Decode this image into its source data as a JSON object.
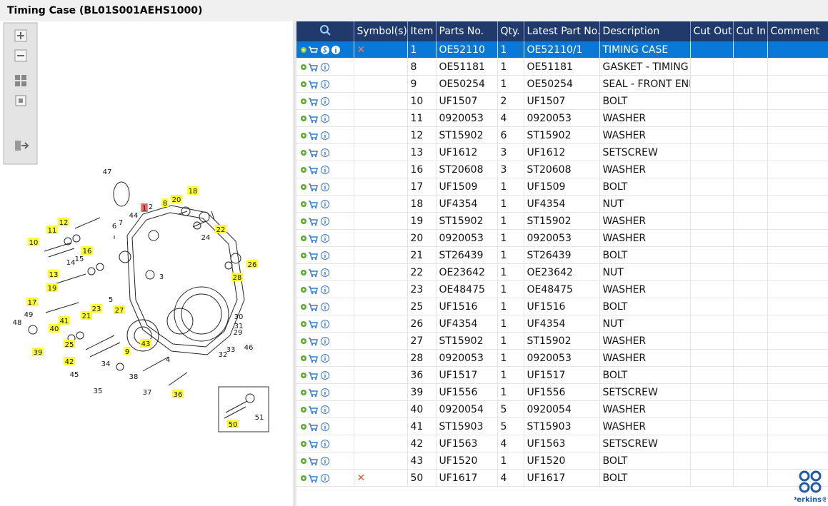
{
  "header": {
    "title": "Timing Case (BL01S001AEHS1000)"
  },
  "table": {
    "columns": [
      "Symbol(s)",
      "Item",
      "Parts No.",
      "Qty.",
      "Latest Part No.",
      "Description",
      "Cut Out",
      "Cut In",
      "Comment"
    ],
    "selected_row": 0,
    "rows": [
      {
        "symbol": "✕",
        "item": 1,
        "parts_no": "OE52110",
        "qty": 1,
        "latest": "OE52110/1",
        "description": "TIMING CASE"
      },
      {
        "item": 8,
        "parts_no": "OE51181",
        "qty": 1,
        "latest": "OE51181",
        "description": "GASKET - TIMING C"
      },
      {
        "item": 9,
        "parts_no": "OE50254",
        "qty": 1,
        "latest": "OE50254",
        "description": "SEAL - FRONT END"
      },
      {
        "item": 10,
        "parts_no": "UF1507",
        "qty": 2,
        "latest": "UF1507",
        "description": "BOLT"
      },
      {
        "item": 11,
        "parts_no": "0920053",
        "qty": 4,
        "latest": "0920053",
        "description": "WASHER"
      },
      {
        "item": 12,
        "parts_no": "ST15902",
        "qty": 6,
        "latest": "ST15902",
        "description": "WASHER"
      },
      {
        "item": 13,
        "parts_no": "UF1612",
        "qty": 3,
        "latest": "UF1612",
        "description": "SETSCREW"
      },
      {
        "item": 16,
        "parts_no": "ST20608",
        "qty": 3,
        "latest": "ST20608",
        "description": "WASHER"
      },
      {
        "item": 17,
        "parts_no": "UF1509",
        "qty": 1,
        "latest": "UF1509",
        "description": "BOLT"
      },
      {
        "item": 18,
        "parts_no": "UF4354",
        "qty": 1,
        "latest": "UF4354",
        "description": "NUT"
      },
      {
        "item": 19,
        "parts_no": "ST15902",
        "qty": 1,
        "latest": "ST15902",
        "description": "WASHER"
      },
      {
        "item": 20,
        "parts_no": "0920053",
        "qty": 1,
        "latest": "0920053",
        "description": "WASHER"
      },
      {
        "item": 21,
        "parts_no": "ST26439",
        "qty": 1,
        "latest": "ST26439",
        "description": "BOLT"
      },
      {
        "item": 22,
        "parts_no": "OE23642",
        "qty": 1,
        "latest": "OE23642",
        "description": "NUT"
      },
      {
        "item": 23,
        "parts_no": "OE48475",
        "qty": 1,
        "latest": "OE48475",
        "description": "WASHER"
      },
      {
        "item": 25,
        "parts_no": "UF1516",
        "qty": 1,
        "latest": "UF1516",
        "description": "BOLT"
      },
      {
        "item": 26,
        "parts_no": "UF4354",
        "qty": 1,
        "latest": "UF4354",
        "description": "NUT"
      },
      {
        "item": 27,
        "parts_no": "ST15902",
        "qty": 1,
        "latest": "ST15902",
        "description": "WASHER"
      },
      {
        "item": 28,
        "parts_no": "0920053",
        "qty": 1,
        "latest": "0920053",
        "description": "WASHER"
      },
      {
        "item": 36,
        "parts_no": "UF1517",
        "qty": 1,
        "latest": "UF1517",
        "description": "BOLT"
      },
      {
        "item": 39,
        "parts_no": "UF1556",
        "qty": 1,
        "latest": "UF1556",
        "description": "SETSCREW"
      },
      {
        "item": 40,
        "parts_no": "0920054",
        "qty": 5,
        "latest": "0920054",
        "description": "WASHER"
      },
      {
        "item": 41,
        "parts_no": "ST15903",
        "qty": 5,
        "latest": "ST15903",
        "description": "WASHER"
      },
      {
        "item": 42,
        "parts_no": "UF1563",
        "qty": 4,
        "latest": "UF1563",
        "description": "SETSCREW"
      },
      {
        "item": 43,
        "parts_no": "UF1520",
        "qty": 1,
        "latest": "UF1520",
        "description": "BOLT"
      },
      {
        "symbol": "✕",
        "item": 50,
        "parts_no": "UF1617",
        "qty": 4,
        "latest": "UF1617",
        "description": "BOLT"
      }
    ]
  },
  "diagram": {
    "callouts": [
      {
        "label": "47",
        "state": "plain"
      },
      {
        "label": "2",
        "state": "plain"
      },
      {
        "label": "1",
        "state": "selected"
      },
      {
        "label": "44",
        "state": "plain"
      },
      {
        "label": "8",
        "state": "highlighted"
      },
      {
        "label": "20",
        "state": "highlighted"
      },
      {
        "label": "18",
        "state": "highlighted"
      },
      {
        "label": "22",
        "state": "highlighted"
      },
      {
        "label": "24",
        "state": "plain"
      },
      {
        "label": "12",
        "state": "highlighted"
      },
      {
        "label": "11",
        "state": "highlighted"
      },
      {
        "label": "6",
        "state": "plain"
      },
      {
        "label": "7",
        "state": "plain"
      },
      {
        "label": "10",
        "state": "highlighted"
      },
      {
        "label": "16",
        "state": "highlighted"
      },
      {
        "label": "15",
        "state": "plain"
      },
      {
        "label": "14",
        "state": "plain"
      },
      {
        "label": "3",
        "state": "plain"
      },
      {
        "label": "26",
        "state": "highlighted"
      },
      {
        "label": "28",
        "state": "highlighted"
      },
      {
        "label": "13",
        "state": "highlighted"
      },
      {
        "label": "19",
        "state": "highlighted"
      },
      {
        "label": "17",
        "state": "highlighted"
      },
      {
        "label": "23",
        "state": "highlighted"
      },
      {
        "label": "27",
        "state": "highlighted"
      },
      {
        "label": "21",
        "state": "highlighted"
      },
      {
        "label": "49",
        "state": "plain"
      },
      {
        "label": "48",
        "state": "plain"
      },
      {
        "label": "41",
        "state": "highlighted"
      },
      {
        "label": "40",
        "state": "highlighted"
      },
      {
        "label": "30",
        "state": "plain"
      },
      {
        "label": "31",
        "state": "plain"
      },
      {
        "label": "29",
        "state": "plain"
      },
      {
        "label": "25",
        "state": "highlighted"
      },
      {
        "label": "43",
        "state": "highlighted"
      },
      {
        "label": "46",
        "state": "plain"
      },
      {
        "label": "9",
        "state": "highlighted"
      },
      {
        "label": "33",
        "state": "plain"
      },
      {
        "label": "39",
        "state": "highlighted"
      },
      {
        "label": "32",
        "state": "plain"
      },
      {
        "label": "42",
        "state": "highlighted"
      },
      {
        "label": "4",
        "state": "plain"
      },
      {
        "label": "34",
        "state": "plain"
      },
      {
        "label": "45",
        "state": "plain"
      },
      {
        "label": "38",
        "state": "plain"
      },
      {
        "label": "37",
        "state": "plain"
      },
      {
        "label": "35",
        "state": "plain"
      },
      {
        "label": "36",
        "state": "highlighted"
      },
      {
        "label": "5",
        "state": "plain"
      },
      {
        "label": "50",
        "state": "highlighted"
      },
      {
        "label": "51",
        "state": "plain"
      }
    ]
  },
  "brand": "Perkins®"
}
